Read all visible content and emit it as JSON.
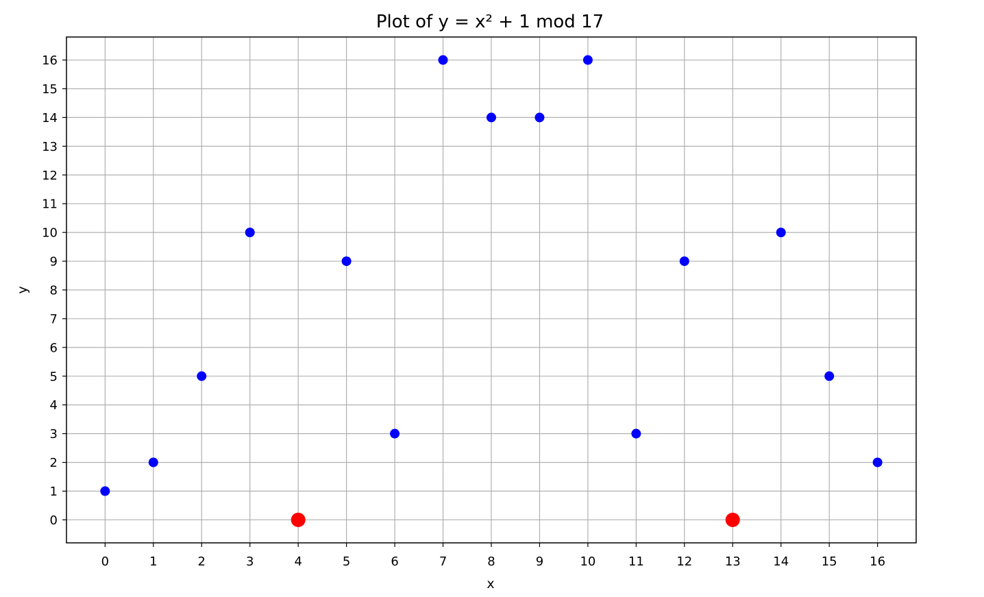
{
  "chart_data": {
    "type": "scatter",
    "title": "Plot of y = x² + 1 mod 17",
    "xlabel": "x",
    "ylabel": "y",
    "xlim": [
      -0.8,
      16.8
    ],
    "ylim": [
      -0.8,
      16.8
    ],
    "xticks": [
      0,
      1,
      2,
      3,
      4,
      5,
      6,
      7,
      8,
      9,
      10,
      11,
      12,
      13,
      14,
      15,
      16
    ],
    "yticks": [
      0,
      1,
      2,
      3,
      4,
      5,
      6,
      7,
      8,
      9,
      10,
      11,
      12,
      13,
      14,
      15,
      16
    ],
    "grid": true,
    "series": [
      {
        "color": "#0000ff",
        "marker": "circle",
        "points": [
          {
            "x": 0,
            "y": 1
          },
          {
            "x": 1,
            "y": 2
          },
          {
            "x": 2,
            "y": 5
          },
          {
            "x": 3,
            "y": 10
          },
          {
            "x": 5,
            "y": 9
          },
          {
            "x": 6,
            "y": 3
          },
          {
            "x": 7,
            "y": 16
          },
          {
            "x": 8,
            "y": 14
          },
          {
            "x": 9,
            "y": 14
          },
          {
            "x": 10,
            "y": 16
          },
          {
            "x": 11,
            "y": 3
          },
          {
            "x": 12,
            "y": 9
          },
          {
            "x": 14,
            "y": 10
          },
          {
            "x": 15,
            "y": 5
          },
          {
            "x": 16,
            "y": 2
          }
        ]
      },
      {
        "color": "#ff0000",
        "marker": "circle-large",
        "points": [
          {
            "x": 4,
            "y": 0
          },
          {
            "x": 13,
            "y": 0
          }
        ]
      }
    ]
  }
}
